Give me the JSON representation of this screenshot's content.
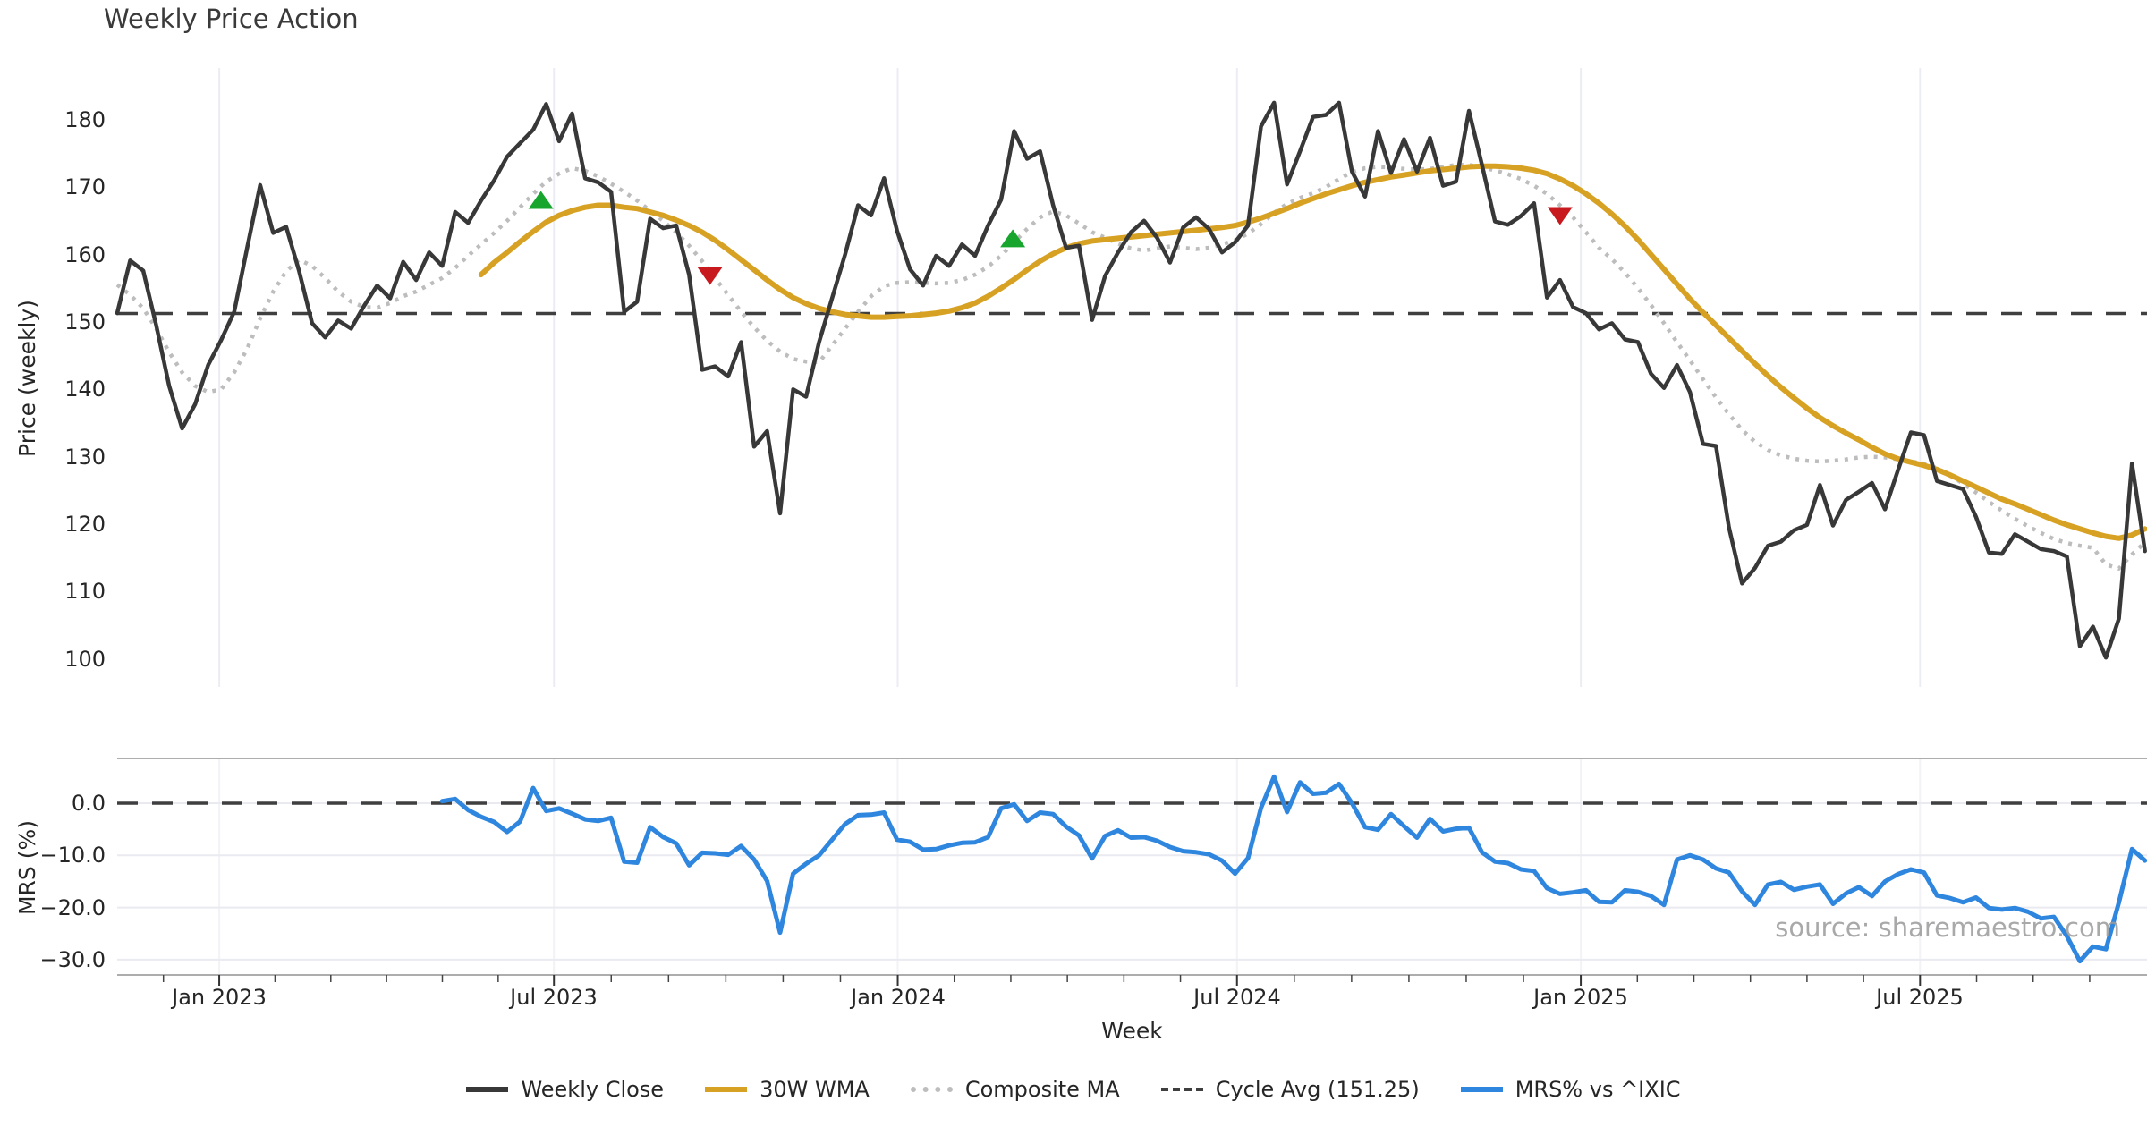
{
  "title": "Weekly Price Action",
  "watermark": "source: sharemaestro.com",
  "colors": {
    "weekly_close": "#383838",
    "wma": "#D7A223",
    "composite": "#BDBDBD",
    "cycle_avg": "#3F3F3F",
    "mrs": "#2E86DE",
    "buy_marker": "#17A52E",
    "sell_marker": "#C8191E",
    "grid": "#ECECF4",
    "spine": "#ADADAD"
  },
  "legend": [
    {
      "label": "Weekly Close",
      "color": "#383838",
      "style": "solid"
    },
    {
      "label": "30W WMA",
      "color": "#D7A223",
      "style": "solid"
    },
    {
      "label": "Composite MA",
      "color": "#BDBDBD",
      "style": "dotted"
    },
    {
      "label": "Cycle Avg (151.25)",
      "color": "#3F3F3F",
      "style": "dashed"
    },
    {
      "label": "MRS% vs ^IXIC",
      "color": "#2E86DE",
      "style": "solid"
    }
  ],
  "chart_data": [
    {
      "type": "line",
      "panel": "price",
      "title": "Weekly Price Action",
      "xlabel": "Week",
      "ylabel": "Price (weekly)",
      "ylim": [
        95,
        187
      ],
      "grid": "vertical-only",
      "x_ticks": [
        {
          "label": "Jan 2023",
          "week": 7.85
        },
        {
          "label": "Jul 2023",
          "week": 33.6
        },
        {
          "label": "Jan 2024",
          "week": 60.05
        },
        {
          "label": "Jul 2024",
          "week": 86.15
        },
        {
          "label": "Jan 2025",
          "week": 112.6
        },
        {
          "label": "Jul 2025",
          "week": 138.7
        }
      ],
      "y_ticks": [
        100,
        110,
        120,
        130,
        140,
        150,
        160,
        170,
        180
      ],
      "cycle_avg_value": 151.25,
      "series": [
        {
          "name": "Weekly Close",
          "style": "solid",
          "color": "#383838",
          "start_week": 0,
          "values": [
            151.3,
            159.1,
            157.6,
            149.5,
            140.5,
            134.2,
            137.8,
            143.6,
            147.3,
            151.5,
            161.0,
            170.3,
            163.2,
            164.1,
            157.5,
            149.8,
            147.7,
            150.2,
            149.0,
            152.4,
            155.4,
            153.5,
            158.9,
            156.2,
            160.3,
            158.3,
            166.3,
            164.7,
            168.0,
            171.0,
            174.5,
            176.5,
            178.5,
            182.3,
            176.8,
            180.9,
            171.3,
            170.7,
            169.3,
            151.5,
            153.0,
            165.3,
            163.9,
            164.3,
            157.0,
            142.9,
            143.4,
            141.9,
            147.0,
            131.5,
            133.8,
            121.6,
            140.0,
            138.9,
            147.0,
            153.5,
            160.0,
            167.3,
            165.8,
            171.3,
            163.5,
            157.8,
            155.4,
            159.8,
            158.3,
            161.5,
            159.8,
            164.3,
            168.1,
            178.3,
            174.2,
            175.3,
            167.3,
            161.0,
            161.3,
            150.3,
            156.8,
            160.3,
            163.3,
            165.0,
            162.5,
            158.8,
            164.0,
            165.5,
            163.8,
            160.3,
            161.8,
            164.3,
            179.0,
            182.5,
            170.4,
            175.3,
            180.4,
            180.7,
            182.5,
            172.3,
            168.6,
            178.3,
            172.1,
            177.1,
            172.3,
            177.3,
            170.2,
            170.8,
            181.3,
            173.3,
            164.9,
            164.4,
            165.7,
            167.6,
            153.6,
            156.2,
            152.2,
            151.3,
            148.9,
            149.8,
            147.4,
            147.0,
            142.3,
            140.2,
            143.6,
            139.6,
            131.9,
            131.6,
            119.5,
            111.2,
            113.5,
            116.8,
            117.4,
            119.1,
            119.9,
            125.8,
            119.8,
            123.6,
            124.8,
            126.1,
            122.2,
            128.0,
            133.6,
            133.2,
            126.4,
            125.8,
            125.2,
            121.1,
            115.8,
            115.6,
            118.5,
            117.4,
            116.3,
            116.0,
            115.2,
            101.9,
            104.8,
            100.2,
            106.0,
            129.0,
            116.0
          ]
        },
        {
          "name": "30W WMA",
          "style": "solid",
          "color": "#D7A223",
          "start_week": 28,
          "values": [
            157.0,
            158.8,
            160.3,
            161.9,
            163.4,
            164.8,
            165.8,
            166.5,
            167.0,
            167.3,
            167.3,
            167.0,
            166.8,
            166.3,
            165.8,
            165.1,
            164.3,
            163.3,
            162.1,
            160.7,
            159.2,
            157.7,
            156.2,
            154.8,
            153.6,
            152.7,
            152.0,
            151.5,
            151.1,
            150.9,
            150.7,
            150.7,
            150.8,
            150.9,
            151.1,
            151.3,
            151.6,
            152.1,
            152.8,
            153.8,
            155.0,
            156.3,
            157.7,
            159.0,
            160.1,
            161.0,
            161.6,
            162.0,
            162.2,
            162.4,
            162.6,
            162.8,
            163.0,
            163.2,
            163.4,
            163.6,
            163.8,
            164.0,
            164.3,
            164.8,
            165.4,
            166.1,
            166.8,
            167.6,
            168.3,
            169.0,
            169.6,
            170.2,
            170.7,
            171.1,
            171.5,
            171.8,
            172.1,
            172.4,
            172.6,
            172.8,
            173.0,
            173.1,
            173.1,
            173.0,
            172.8,
            172.5,
            172.0,
            171.2,
            170.2,
            169.0,
            167.6,
            166.0,
            164.2,
            162.2,
            160.0,
            157.8,
            155.6,
            153.4,
            151.4,
            149.5,
            147.6,
            145.7,
            143.8,
            142.0,
            140.3,
            138.7,
            137.2,
            135.8,
            134.6,
            133.5,
            132.5,
            131.4,
            130.4,
            129.7,
            129.2,
            128.7,
            128.1,
            127.3,
            126.4,
            125.5,
            124.6,
            123.7,
            123.0,
            122.2,
            121.4,
            120.6,
            119.9,
            119.3,
            118.7,
            118.2,
            117.9,
            118.4,
            119.3
          ]
        },
        {
          "name": "Composite MA",
          "style": "dotted",
          "color": "#BDBDBD",
          "start_week": 0,
          "values": [
            155.5,
            154.0,
            152.0,
            149.0,
            145.5,
            142.5,
            140.5,
            139.6,
            140.0,
            142.5,
            146.0,
            150.5,
            154.5,
            157.5,
            159.2,
            158.3,
            156.5,
            154.5,
            153.0,
            152.2,
            152.1,
            152.8,
            153.8,
            154.5,
            155.5,
            156.5,
            158.0,
            159.8,
            161.5,
            163.2,
            165.0,
            167.0,
            169.0,
            170.8,
            172.0,
            172.8,
            172.4,
            171.6,
            170.5,
            169.3,
            168.0,
            166.5,
            165.0,
            163.3,
            161.3,
            159.0,
            156.5,
            154.0,
            151.5,
            149.2,
            147.2,
            145.6,
            144.5,
            144.1,
            144.0,
            146.5,
            149.0,
            151.5,
            153.8,
            155.3,
            155.8,
            155.9,
            155.8,
            155.7,
            155.8,
            156.2,
            157.0,
            158.2,
            159.8,
            161.8,
            163.8,
            165.5,
            166.4,
            165.8,
            164.6,
            163.3,
            162.5,
            161.6,
            160.9,
            160.6,
            160.9,
            161.2,
            161.0,
            160.8,
            161.0,
            161.5,
            162.1,
            163.1,
            164.5,
            166.2,
            167.5,
            168.4,
            169.1,
            170.0,
            171.2,
            172.2,
            172.8,
            173.0,
            172.9,
            172.7,
            172.6,
            172.7,
            173.0,
            173.3,
            173.3,
            172.9,
            172.5,
            171.9,
            171.2,
            170.2,
            169.0,
            167.3,
            165.5,
            163.3,
            161.0,
            159.3,
            157.3,
            155.0,
            152.5,
            149.8,
            147.0,
            144.3,
            141.5,
            138.8,
            136.3,
            134.0,
            132.2,
            131.0,
            130.2,
            129.7,
            129.4,
            129.3,
            129.4,
            129.6,
            129.9,
            130.0,
            129.9,
            129.6,
            129.3,
            129.0,
            128.3,
            127.3,
            126.0,
            124.7,
            123.3,
            122.0,
            120.8,
            119.7,
            118.7,
            117.8,
            117.2,
            116.8,
            116.5,
            114.0,
            113.4,
            115.5,
            117.3
          ]
        },
        {
          "name": "Cycle Avg (151.25)",
          "style": "dashed",
          "color": "#3F3F3F",
          "value": 151.25
        }
      ],
      "markers": [
        {
          "type": "buy",
          "shape": "triangle-up",
          "color": "#17A52E",
          "week": 32.6,
          "price": 168.1
        },
        {
          "type": "buy",
          "shape": "triangle-up",
          "color": "#17A52E",
          "week": 68.9,
          "price": 162.4
        },
        {
          "type": "sell",
          "shape": "triangle-down",
          "color": "#C8191E",
          "week": 45.6,
          "price": 156.8
        },
        {
          "type": "sell",
          "shape": "triangle-down",
          "color": "#C8191E",
          "week": 111.0,
          "price": 165.7
        }
      ]
    },
    {
      "type": "line",
      "panel": "mrs",
      "ylabel": "MRS (%)",
      "ylim": [
        -32.6,
        8.6
      ],
      "y_ticks": [
        {
          "label": "0.0",
          "value": 0
        },
        {
          "label": "−10.0",
          "value": -10
        },
        {
          "label": "−20.0",
          "value": -20
        },
        {
          "label": "−30.0",
          "value": -30
        }
      ],
      "zero_line": 0,
      "series": [
        {
          "name": "MRS% vs ^IXIC",
          "style": "solid",
          "color": "#2E86DE",
          "start_week": 25,
          "values": [
            0.4,
            0.8,
            -1.3,
            -2.6,
            -3.6,
            -5.5,
            -3.5,
            2.9,
            -1.5,
            -1.0,
            -2.0,
            -3.1,
            -3.4,
            -2.8,
            -11.2,
            -11.4,
            -4.6,
            -6.5,
            -7.7,
            -11.9,
            -9.5,
            -9.6,
            -9.9,
            -8.2,
            -10.8,
            -14.9,
            -24.8,
            -13.5,
            -11.6,
            -10.0,
            -7.0,
            -4.0,
            -2.3,
            -2.2,
            -1.8,
            -7.0,
            -7.4,
            -8.9,
            -8.8,
            -8.1,
            -7.6,
            -7.5,
            -6.5,
            -1.0,
            -0.2,
            -3.4,
            -1.8,
            -2.1,
            -4.5,
            -6.2,
            -10.6,
            -6.3,
            -5.2,
            -6.6,
            -6.5,
            -7.2,
            -8.4,
            -9.2,
            -9.4,
            -9.8,
            -11.0,
            -13.5,
            -10.5,
            -0.9,
            5.1,
            -1.7,
            4.0,
            1.8,
            2.0,
            3.7,
            0.0,
            -4.6,
            -5.1,
            -2.1,
            -4.4,
            -6.6,
            -3.0,
            -5.4,
            -4.9,
            -4.7,
            -9.4,
            -11.2,
            -11.5,
            -12.7,
            -13.0,
            -16.3,
            -17.4,
            -17.1,
            -16.7,
            -18.9,
            -19.0,
            -16.7,
            -17.0,
            -17.8,
            -19.5,
            -10.8,
            -10.0,
            -10.8,
            -12.5,
            -13.3,
            -16.9,
            -19.5,
            -15.6,
            -15.1,
            -16.6,
            -16.0,
            -15.6,
            -19.3,
            -17.3,
            -16.1,
            -17.8,
            -15.0,
            -13.6,
            -12.7,
            -13.3,
            -17.7,
            -18.2,
            -19.0,
            -18.1,
            -20.1,
            -20.4,
            -20.1,
            -20.8,
            -22.1,
            -21.8,
            -25.5,
            -30.3,
            -27.5,
            -28.0,
            -19.0,
            -8.8,
            -11.0
          ]
        }
      ]
    }
  ]
}
